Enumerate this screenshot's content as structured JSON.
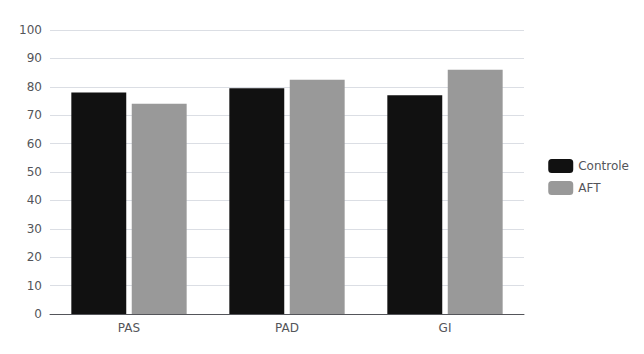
{
  "chart_data": {
    "type": "bar",
    "categories": [
      "PAS",
      "PAD",
      "GI"
    ],
    "series": [
      {
        "name": "Controle",
        "color": "#111111",
        "values": [
          78,
          79.5,
          77
        ]
      },
      {
        "name": "AFT",
        "color": "#999999",
        "values": [
          74,
          82.5,
          86
        ]
      }
    ],
    "ylim": [
      0,
      100
    ],
    "yticks": [
      0,
      10,
      20,
      30,
      40,
      50,
      60,
      70,
      80,
      90,
      100
    ],
    "grid": true,
    "legend": "right"
  }
}
